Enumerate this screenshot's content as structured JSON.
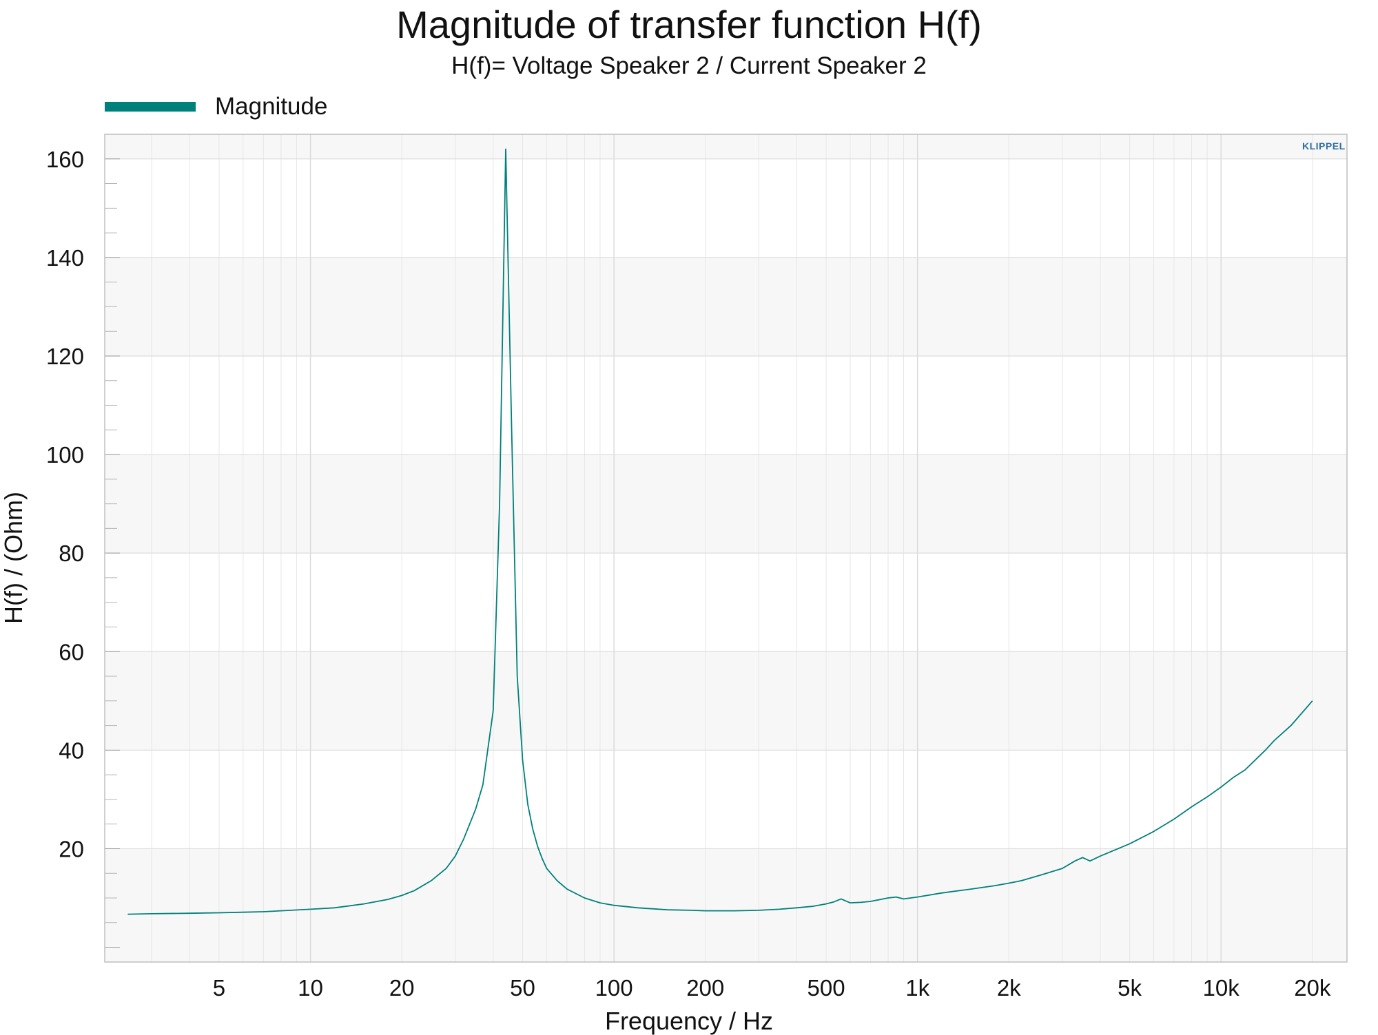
{
  "chart_data": {
    "type": "line",
    "title": "Magnitude of transfer function H(f)",
    "subtitle": "H(f)= Voltage Speaker 2 / Current Speaker 2",
    "xlabel": "Frequency / Hz",
    "ylabel": "H(f) / (Ohm)",
    "xscale": "log",
    "xlim": [
      2.1,
      26000
    ],
    "ylim": [
      -3,
      165
    ],
    "grid": true,
    "legend": "top-left",
    "x_ticks": [
      {
        "value": 5,
        "label": "5"
      },
      {
        "value": 10,
        "label": "10"
      },
      {
        "value": 20,
        "label": "20"
      },
      {
        "value": 50,
        "label": "50"
      },
      {
        "value": 100,
        "label": "100"
      },
      {
        "value": 200,
        "label": "200"
      },
      {
        "value": 500,
        "label": "500"
      },
      {
        "value": 1000,
        "label": "1k"
      },
      {
        "value": 2000,
        "label": "2k"
      },
      {
        "value": 5000,
        "label": "5k"
      },
      {
        "value": 10000,
        "label": "10k"
      },
      {
        "value": 20000,
        "label": "20k"
      }
    ],
    "y_ticks": [
      20,
      40,
      60,
      80,
      100,
      120,
      140,
      160
    ],
    "series": [
      {
        "name": "Magnitude",
        "color": "#00807a",
        "x": [
          2.5,
          3,
          4,
          5,
          6,
          7,
          8,
          10,
          12,
          15,
          18,
          20,
          22,
          25,
          28,
          30,
          32,
          35,
          37,
          40,
          42,
          44,
          46,
          48,
          50,
          52,
          54,
          56,
          58,
          60,
          65,
          70,
          80,
          90,
          100,
          120,
          150,
          180,
          200,
          250,
          300,
          350,
          400,
          450,
          500,
          530,
          560,
          600,
          650,
          700,
          800,
          850,
          900,
          1000,
          1200,
          1500,
          1800,
          2000,
          2200,
          2500,
          3000,
          3300,
          3500,
          3700,
          4000,
          5000,
          6000,
          7000,
          8000,
          9000,
          10000,
          11000,
          12000,
          14000,
          15000,
          17000,
          20000
        ],
        "values": [
          6.7,
          6.8,
          6.9,
          7.0,
          7.1,
          7.2,
          7.4,
          7.7,
          8.0,
          8.8,
          9.7,
          10.5,
          11.5,
          13.5,
          16.0,
          18.5,
          22.0,
          28.0,
          33.0,
          48.0,
          90.0,
          162.0,
          105.0,
          55.0,
          38.0,
          29.0,
          24.0,
          20.5,
          18.0,
          16.0,
          13.5,
          11.8,
          10.0,
          9.0,
          8.5,
          8.0,
          7.6,
          7.5,
          7.4,
          7.4,
          7.5,
          7.7,
          8.0,
          8.3,
          8.8,
          9.2,
          9.8,
          9.0,
          9.1,
          9.3,
          10.0,
          10.2,
          9.8,
          10.2,
          11.0,
          11.8,
          12.5,
          13.0,
          13.5,
          14.5,
          16.0,
          17.5,
          18.2,
          17.5,
          18.5,
          21.0,
          23.5,
          26.0,
          28.5,
          30.5,
          32.5,
          34.5,
          36.0,
          40.0,
          42.0,
          45.0,
          50.0
        ]
      }
    ]
  },
  "logo_text": "KLIPPEL"
}
